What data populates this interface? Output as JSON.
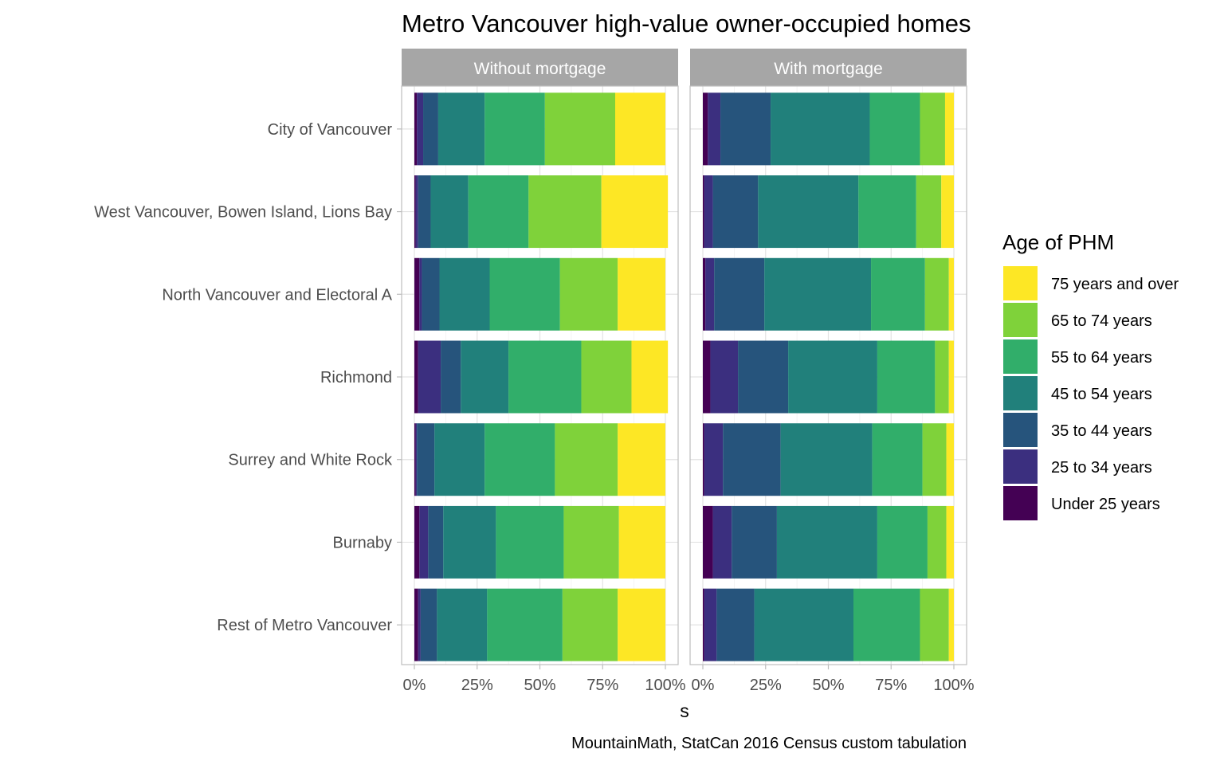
{
  "chart_data": {
    "type": "bar",
    "stacked": "percent",
    "orientation": "horizontal",
    "title": "Metro Vancouver high-value owner-occupied homes",
    "xlabel": "s",
    "ylabel": "",
    "caption": "MountainMath, StatCan 2016 Census custom tabulation",
    "xlim": [
      0,
      1
    ],
    "x_ticks": [
      "0%",
      "25%",
      "50%",
      "75%",
      "100%"
    ],
    "grid": true,
    "legend": {
      "title": "Age of PHM",
      "position": "right"
    },
    "facets": [
      "Without mortgage",
      "With mortgage"
    ],
    "categories": [
      "City of Vancouver",
      "West Vancouver, Bowen Island, Lions Bay",
      "North Vancouver and Electoral A",
      "Richmond",
      "Surrey and White Rock",
      "Burnaby",
      "Rest of Metro Vancouver"
    ],
    "series": [
      {
        "name": "Under 25 years",
        "color": "#440154",
        "without_mortgage": [
          0.01,
          0.005,
          0.02,
          0.015,
          0.005,
          0.02,
          0.015
        ],
        "with_mortgage": [
          0.02,
          0.005,
          0.01,
          0.03,
          0.005,
          0.04,
          0.005
        ]
      },
      {
        "name": "25 to 34 years",
        "color": "#3B2F7F",
        "without_mortgage": [
          0.025,
          0.01,
          0.01,
          0.09,
          0.005,
          0.035,
          0.01
        ],
        "with_mortgage": [
          0.05,
          0.035,
          0.035,
          0.11,
          0.075,
          0.075,
          0.05
        ]
      },
      {
        "name": "35 to 44 years",
        "color": "#26547C",
        "without_mortgage": [
          0.06,
          0.05,
          0.07,
          0.08,
          0.07,
          0.06,
          0.065
        ],
        "with_mortgage": [
          0.2,
          0.18,
          0.2,
          0.2,
          0.23,
          0.18,
          0.15
        ]
      },
      {
        "name": "45 to 54 years",
        "color": "#21807B",
        "without_mortgage": [
          0.185,
          0.15,
          0.2,
          0.19,
          0.2,
          0.21,
          0.2
        ],
        "with_mortgage": [
          0.395,
          0.4,
          0.425,
          0.355,
          0.365,
          0.4,
          0.395
        ]
      },
      {
        "name": "55 to 64 years",
        "color": "#31AE6A",
        "without_mortgage": [
          0.24,
          0.24,
          0.28,
          0.29,
          0.28,
          0.27,
          0.3
        ],
        "with_mortgage": [
          0.2,
          0.23,
          0.215,
          0.23,
          0.2,
          0.2,
          0.265
        ]
      },
      {
        "name": "65 to 74 years",
        "color": "#7FD23A",
        "without_mortgage": [
          0.28,
          0.29,
          0.23,
          0.2,
          0.25,
          0.22,
          0.22
        ],
        "with_mortgage": [
          0.1,
          0.1,
          0.095,
          0.055,
          0.095,
          0.075,
          0.115
        ]
      },
      {
        "name": "75 years and over",
        "color": "#FDE725",
        "without_mortgage": [
          0.2,
          0.265,
          0.19,
          0.145,
          0.19,
          0.185,
          0.19
        ],
        "with_mortgage": [
          0.035,
          0.05,
          0.02,
          0.02,
          0.03,
          0.03,
          0.02
        ]
      }
    ]
  }
}
